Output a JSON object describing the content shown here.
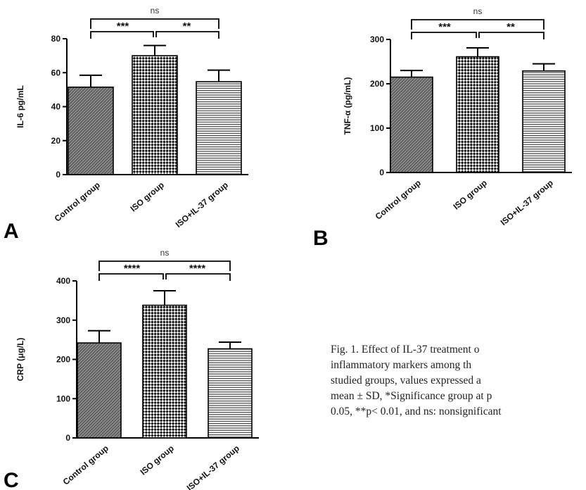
{
  "figure": {
    "caption_lines": [
      "Fig. 1. Effect of IL-37 treatment o",
      "inflammatory markers among th",
      "studied groups, values expressed a",
      "mean ± SD, *Significance group at p",
      "0.05, **p< 0.01, and ns: nonsignificant"
    ]
  },
  "chart_data": [
    {
      "panel": "A",
      "type": "bar",
      "ylabel": "IL-6 pg/mL",
      "xlabel": "",
      "categories": [
        "Control group",
        "ISO group",
        "ISO+IL-37 group"
      ],
      "values": [
        51.5,
        70,
        54.7
      ],
      "errors": [
        7,
        6,
        6.8
      ],
      "ylim": [
        0,
        80
      ],
      "yticks": [
        0,
        20,
        40,
        60,
        80
      ],
      "patterns": [
        "diagonal-dark",
        "checker",
        "horizontal-lines"
      ],
      "comparisons": [
        {
          "from": 0,
          "to": 1,
          "label": "***"
        },
        {
          "from": 1,
          "to": 2,
          "label": "**"
        },
        {
          "from": 0,
          "to": 2,
          "label": "ns"
        }
      ]
    },
    {
      "panel": "B",
      "type": "bar",
      "ylabel": "TNF-α (pg/mL)",
      "xlabel": "",
      "categories": [
        "Control group",
        "ISO group",
        "ISO+IL-37 group"
      ],
      "values": [
        215,
        261,
        229
      ],
      "errors": [
        15,
        20,
        16
      ],
      "ylim": [
        0,
        300
      ],
      "yticks": [
        0,
        100,
        200,
        300
      ],
      "patterns": [
        "diagonal-dark",
        "checker",
        "horizontal-lines"
      ],
      "comparisons": [
        {
          "from": 0,
          "to": 1,
          "label": "***"
        },
        {
          "from": 1,
          "to": 2,
          "label": "**"
        },
        {
          "from": 0,
          "to": 2,
          "label": "ns"
        }
      ]
    },
    {
      "panel": "C",
      "type": "bar",
      "ylabel": "CRP (μg/L)",
      "xlabel": "",
      "categories": [
        "Control group",
        "ISO group",
        "ISO+IL-37 group"
      ],
      "values": [
        242,
        338,
        227
      ],
      "errors": [
        31,
        37,
        17
      ],
      "ylim": [
        0,
        400
      ],
      "yticks": [
        0,
        100,
        200,
        300,
        400
      ],
      "patterns": [
        "diagonal-dark",
        "checker",
        "horizontal-lines"
      ],
      "comparisons": [
        {
          "from": 0,
          "to": 1,
          "label": "****"
        },
        {
          "from": 1,
          "to": 2,
          "label": "****"
        },
        {
          "from": 0,
          "to": 2,
          "label": "ns"
        }
      ]
    }
  ]
}
